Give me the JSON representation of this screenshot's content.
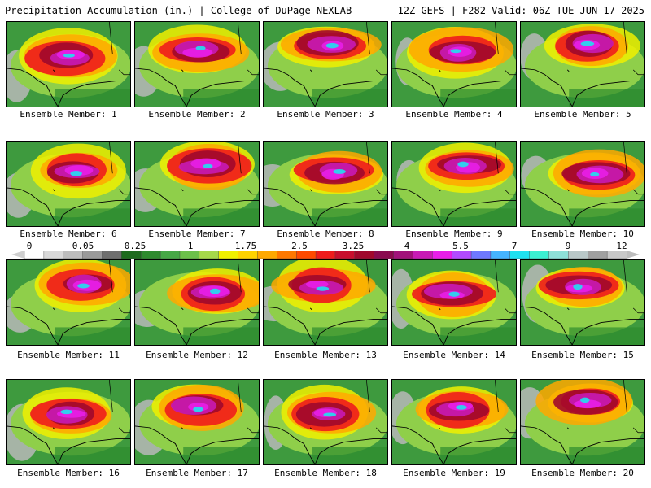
{
  "header": {
    "left_title": "Precipitation Accumulation (in.) | College of DuPage NEXLAB",
    "right_title": "12Z GEFS | F282 Valid: 06Z TUE JUN 17 2025"
  },
  "members": [
    {
      "label": "Ensemble Member: 1"
    },
    {
      "label": "Ensemble Member: 2"
    },
    {
      "label": "Ensemble Member: 3"
    },
    {
      "label": "Ensemble Member: 4"
    },
    {
      "label": "Ensemble Member: 5"
    },
    {
      "label": "Ensemble Member: 6"
    },
    {
      "label": "Ensemble Member: 7"
    },
    {
      "label": "Ensemble Member: 8"
    },
    {
      "label": "Ensemble Member: 9"
    },
    {
      "label": "Ensemble Member: 10"
    },
    {
      "label": "Ensemble Member: 11"
    },
    {
      "label": "Ensemble Member: 12"
    },
    {
      "label": "Ensemble Member: 13"
    },
    {
      "label": "Ensemble Member: 14"
    },
    {
      "label": "Ensemble Member: 15"
    },
    {
      "label": "Ensemble Member: 16"
    },
    {
      "label": "Ensemble Member: 17"
    },
    {
      "label": "Ensemble Member: 18"
    },
    {
      "label": "Ensemble Member: 19"
    },
    {
      "label": "Ensemble Member: 20"
    }
  ],
  "colorbar": {
    "ticks": [
      "0",
      "0.05",
      "0.25",
      "1",
      "1.75",
      "2.5",
      "3.25",
      "4",
      "5.5",
      "7",
      "9",
      "12"
    ],
    "colors": [
      "#ffffff",
      "#d9d9d9",
      "#bdbdbd",
      "#9a9a9a",
      "#6e6e6e",
      "#1e6b1e",
      "#2e8b2e",
      "#46a846",
      "#6cc04a",
      "#a6d84a",
      "#f0f000",
      "#ffd200",
      "#ffa800",
      "#ff7800",
      "#ff4a00",
      "#ee1c1c",
      "#c80f2d",
      "#a0082c",
      "#8a0a4f",
      "#a1127a",
      "#c81ab4",
      "#e81ee8",
      "#b24bff",
      "#6e78ff",
      "#46b4ff",
      "#20e0f0",
      "#3cf0d2",
      "#8ee0d8",
      "#b9c8c8",
      "#a0a0a0",
      "#c8c8c8"
    ]
  }
}
